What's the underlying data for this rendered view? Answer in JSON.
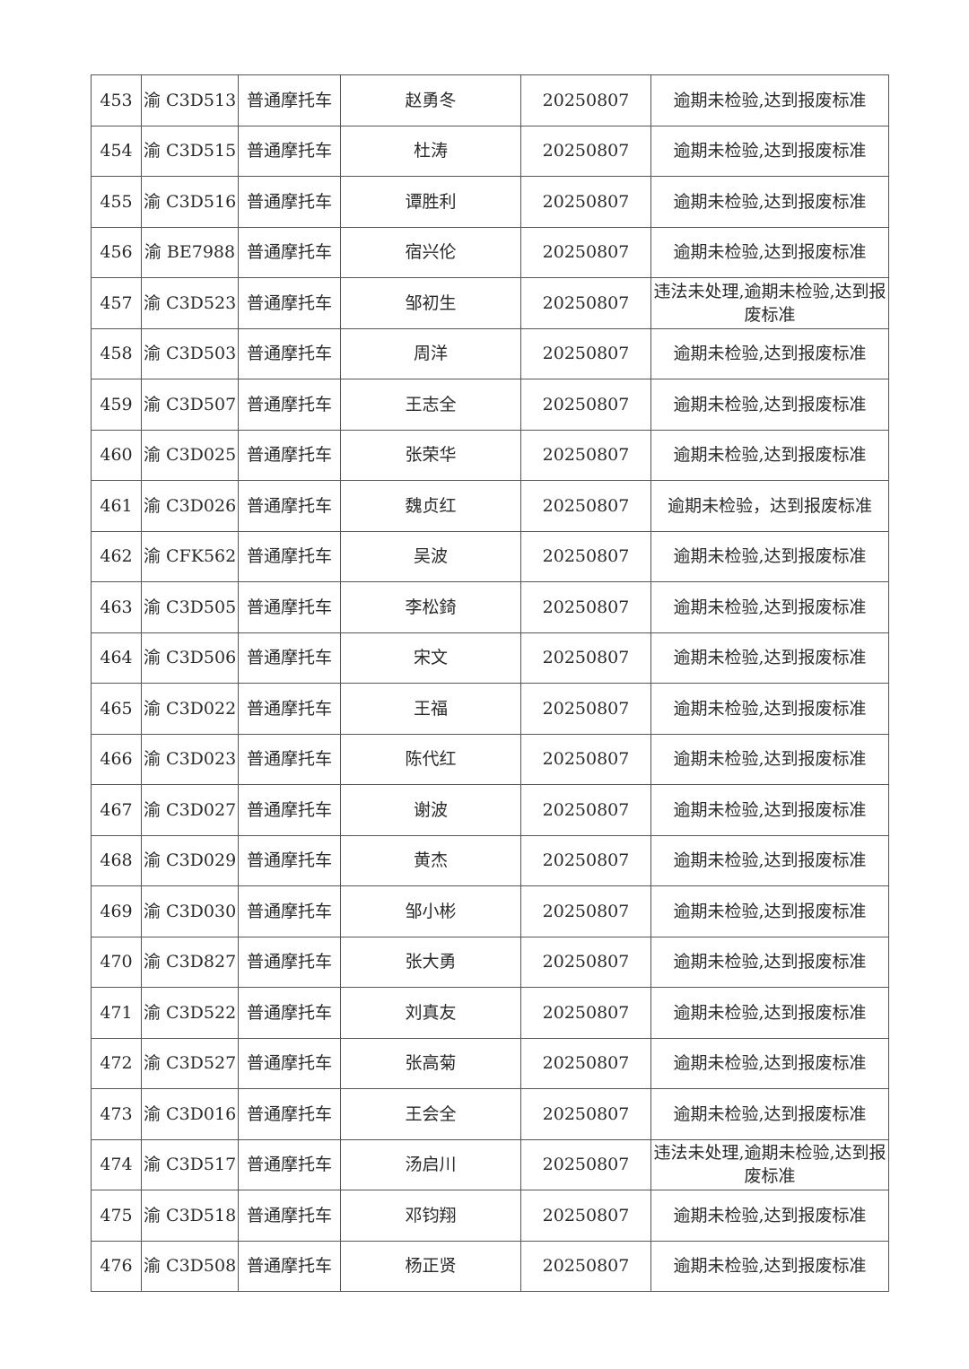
{
  "table": {
    "rows": [
      {
        "no": "453",
        "plate": "渝 C3D513",
        "type": "普通摩托车",
        "name": "赵勇冬",
        "date": "20250807",
        "reason": "逾期未检验,达到报废标准"
      },
      {
        "no": "454",
        "plate": "渝 C3D515",
        "type": "普通摩托车",
        "name": "杜涛",
        "date": "20250807",
        "reason": "逾期未检验,达到报废标准"
      },
      {
        "no": "455",
        "plate": "渝 C3D516",
        "type": "普通摩托车",
        "name": "谭胜利",
        "date": "20250807",
        "reason": "逾期未检验,达到报废标准"
      },
      {
        "no": "456",
        "plate": "渝 BE7988",
        "type": "普通摩托车",
        "name": "宿兴伦",
        "date": "20250807",
        "reason": "逾期未检验,达到报废标准"
      },
      {
        "no": "457",
        "plate": "渝 C3D523",
        "type": "普通摩托车",
        "name": "邹初生",
        "date": "20250807",
        "reason": "违法未处理,逾期未检验,达到报废标准"
      },
      {
        "no": "458",
        "plate": "渝 C3D503",
        "type": "普通摩托车",
        "name": "周洋",
        "date": "20250807",
        "reason": "逾期未检验,达到报废标准"
      },
      {
        "no": "459",
        "plate": "渝 C3D507",
        "type": "普通摩托车",
        "name": "王志全",
        "date": "20250807",
        "reason": "逾期未检验,达到报废标准"
      },
      {
        "no": "460",
        "plate": "渝 C3D025",
        "type": "普通摩托车",
        "name": "张荣华",
        "date": "20250807",
        "reason": "逾期未检验,达到报废标准"
      },
      {
        "no": "461",
        "plate": "渝 C3D026",
        "type": "普通摩托车",
        "name": "魏贞红",
        "date": "20250807",
        "reason": "逾期未检验，达到报废标准"
      },
      {
        "no": "462",
        "plate": "渝 CFK562",
        "type": "普通摩托车",
        "name": "吴波",
        "date": "20250807",
        "reason": "逾期未检验,达到报废标准"
      },
      {
        "no": "463",
        "plate": "渝 C3D505",
        "type": "普通摩托车",
        "name": "李松錡",
        "date": "20250807",
        "reason": "逾期未检验,达到报废标准"
      },
      {
        "no": "464",
        "plate": "渝 C3D506",
        "type": "普通摩托车",
        "name": "宋文",
        "date": "20250807",
        "reason": "逾期未检验,达到报废标准"
      },
      {
        "no": "465",
        "plate": "渝 C3D022",
        "type": "普通摩托车",
        "name": "王福",
        "date": "20250807",
        "reason": "逾期未检验,达到报废标准"
      },
      {
        "no": "466",
        "plate": "渝 C3D023",
        "type": "普通摩托车",
        "name": "陈代红",
        "date": "20250807",
        "reason": "逾期未检验,达到报废标准"
      },
      {
        "no": "467",
        "plate": "渝 C3D027",
        "type": "普通摩托车",
        "name": "谢波",
        "date": "20250807",
        "reason": "逾期未检验,达到报废标准"
      },
      {
        "no": "468",
        "plate": "渝 C3D029",
        "type": "普通摩托车",
        "name": "黄杰",
        "date": "20250807",
        "reason": "逾期未检验,达到报废标准"
      },
      {
        "no": "469",
        "plate": "渝 C3D030",
        "type": "普通摩托车",
        "name": "邹小彬",
        "date": "20250807",
        "reason": "逾期未检验,达到报废标准"
      },
      {
        "no": "470",
        "plate": "渝 C3D827",
        "type": "普通摩托车",
        "name": "张大勇",
        "date": "20250807",
        "reason": "逾期未检验,达到报废标准"
      },
      {
        "no": "471",
        "plate": "渝 C3D522",
        "type": "普通摩托车",
        "name": "刘真友",
        "date": "20250807",
        "reason": "逾期未检验,达到报废标准"
      },
      {
        "no": "472",
        "plate": "渝 C3D527",
        "type": "普通摩托车",
        "name": "张高菊",
        "date": "20250807",
        "reason": "逾期未检验,达到报废标准"
      },
      {
        "no": "473",
        "plate": "渝 C3D016",
        "type": "普通摩托车",
        "name": "王会全",
        "date": "20250807",
        "reason": "逾期未检验,达到报废标准"
      },
      {
        "no": "474",
        "plate": "渝 C3D517",
        "type": "普通摩托车",
        "name": "汤启川",
        "date": "20250807",
        "reason": "违法未处理,逾期未检验,达到报废标准"
      },
      {
        "no": "475",
        "plate": "渝 C3D518",
        "type": "普通摩托车",
        "name": "邓钧翔",
        "date": "20250807",
        "reason": "逾期未检验,达到报废标准"
      },
      {
        "no": "476",
        "plate": "渝 C3D508",
        "type": "普通摩托车",
        "name": "杨正贤",
        "date": "20250807",
        "reason": "逾期未检验,达到报废标准"
      }
    ]
  }
}
